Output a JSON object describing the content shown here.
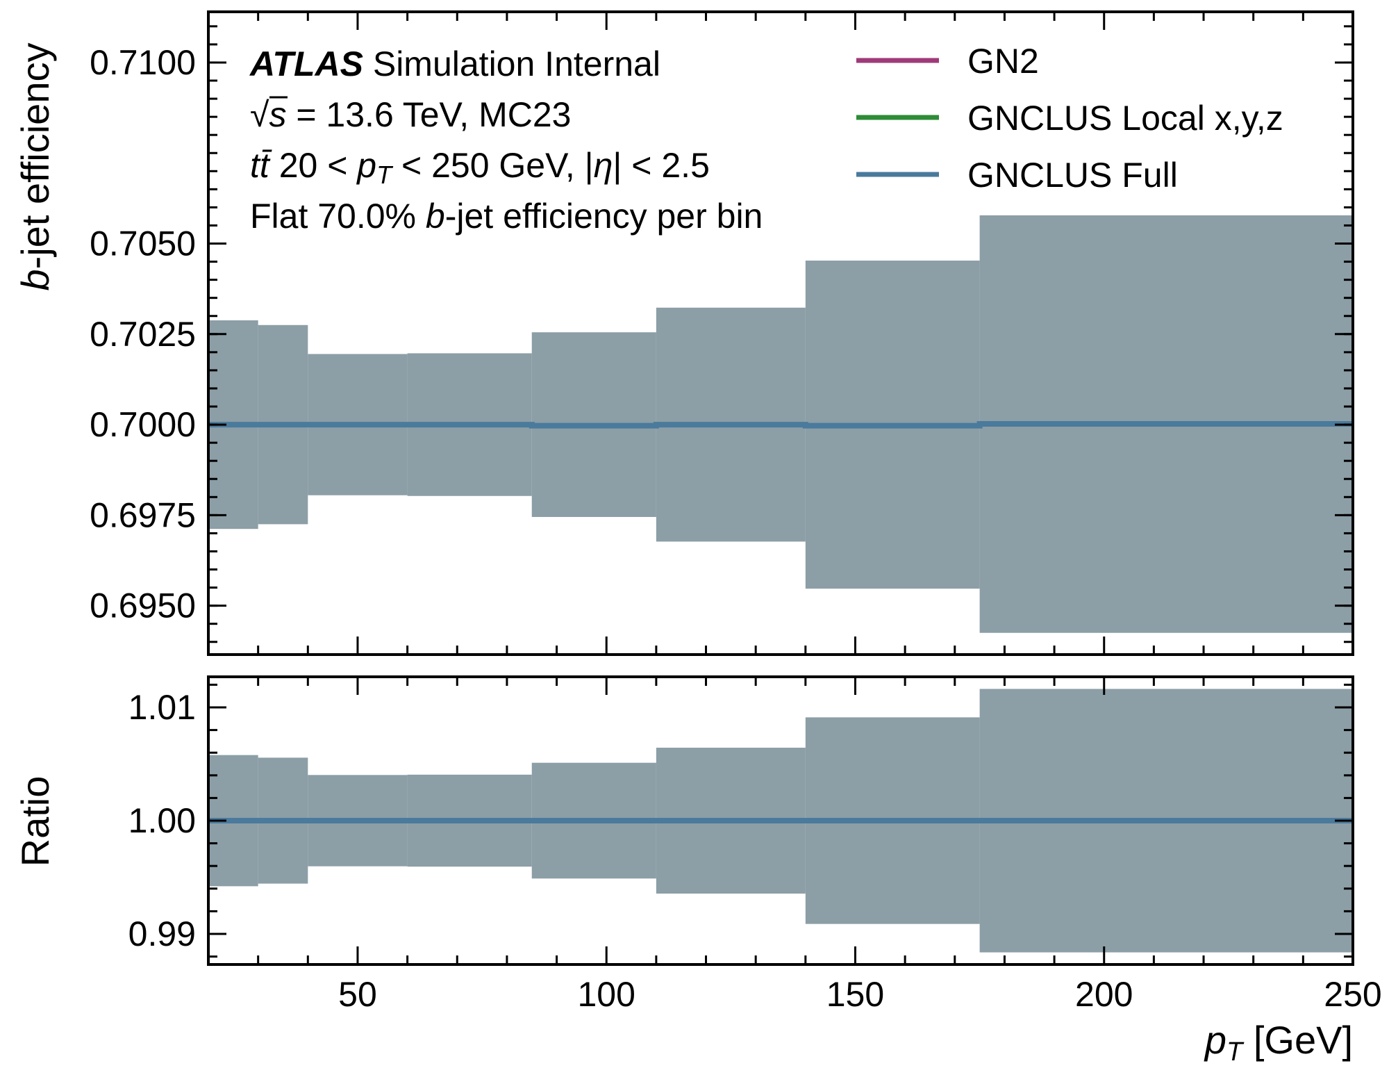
{
  "chart_data": {
    "type": "line",
    "x_unit_note": "bins in p_T [GeV]",
    "bin_edges": [
      20,
      30,
      40,
      60,
      85,
      110,
      140,
      175,
      250
    ],
    "xlabel": "p_T [GeV]",
    "xlabel_var": "p",
    "xlabel_sub": "T",
    "xlabel_unit": " [GeV]",
    "xlim": [
      20,
      250
    ],
    "x_ticks": [
      50,
      100,
      150,
      200,
      250
    ],
    "x_tick_labels": [
      "50",
      "100",
      "150",
      "200",
      "250"
    ],
    "legend": {
      "placement": "top-right",
      "entries": [
        {
          "name": "GN2",
          "color": "#9e3a78"
        },
        {
          "name": "GNCLUS Local x,y,z",
          "color": "#2e8b36"
        },
        {
          "name": "GNCLUS Full",
          "color": "#4a7a9c"
        }
      ]
    },
    "annotations": {
      "atlas": "ATLAS",
      "atlas_rest": " Simulation Internal",
      "line2_sqrt": "√",
      "line2_s": "s",
      "line2_rest": " = 13.6 TeV, MC23",
      "line3_tt": "tt̄",
      "line3_a": " 20 < ",
      "line3_p": "p",
      "line3_sub": "T",
      "line3_b": " < 250 GeV, |",
      "line3_eta": "η",
      "line3_c": "| < 2.5",
      "line4_a": "Flat 70.0% ",
      "line4_b": "b",
      "line4_c": "-jet efficiency per bin"
    },
    "panels": [
      {
        "name": "efficiency",
        "ylabel_b": "b",
        "ylabel_rest": "-jet efficiency",
        "ylim": [
          0.69365,
          0.7114
        ],
        "y_ticks": [
          0.695,
          0.6975,
          0.7,
          0.7025,
          0.705,
          0.71
        ],
        "y_tick_labels": [
          "0.6950",
          "0.6975",
          "0.7000",
          "0.7025",
          "0.7050",
          "0.7100"
        ],
        "y_minor_step": 0.0005,
        "band": {
          "color": "#8c9ea6",
          "lower": [
            0.69712,
            0.69725,
            0.69805,
            0.69803,
            0.69745,
            0.69677,
            0.69547,
            0.69425
          ],
          "upper": [
            0.70288,
            0.70275,
            0.70195,
            0.70197,
            0.70255,
            0.70323,
            0.70453,
            0.70578
          ]
        },
        "series": [
          {
            "name": "GNCLUS Full",
            "color": "#4a7a9c",
            "values": [
              0.7,
              0.7,
              0.7,
              0.7,
              0.69997,
              0.7,
              0.69997,
              0.70002
            ]
          }
        ]
      },
      {
        "name": "ratio",
        "ylabel": "Ratio",
        "ylim": [
          0.9873,
          1.0127
        ],
        "y_ticks": [
          0.99,
          1.0,
          1.01
        ],
        "y_tick_labels": [
          "0.99",
          "1.00",
          "1.01"
        ],
        "y_minor_step": 0.002,
        "band": {
          "color": "#8c9ea6",
          "lower": [
            0.99421,
            0.99444,
            0.99597,
            0.99594,
            0.99489,
            0.99356,
            0.99088,
            0.98837
          ],
          "upper": [
            1.00579,
            1.00556,
            1.00403,
            1.00406,
            1.00511,
            1.00644,
            1.00912,
            1.01163
          ]
        },
        "series": [
          {
            "name": "GNCLUS Full",
            "color": "#4a7a9c",
            "values": [
              1.0,
              1.0,
              1.0,
              1.0,
              1.0,
              1.0,
              1.0,
              1.0
            ]
          }
        ]
      }
    ]
  }
}
